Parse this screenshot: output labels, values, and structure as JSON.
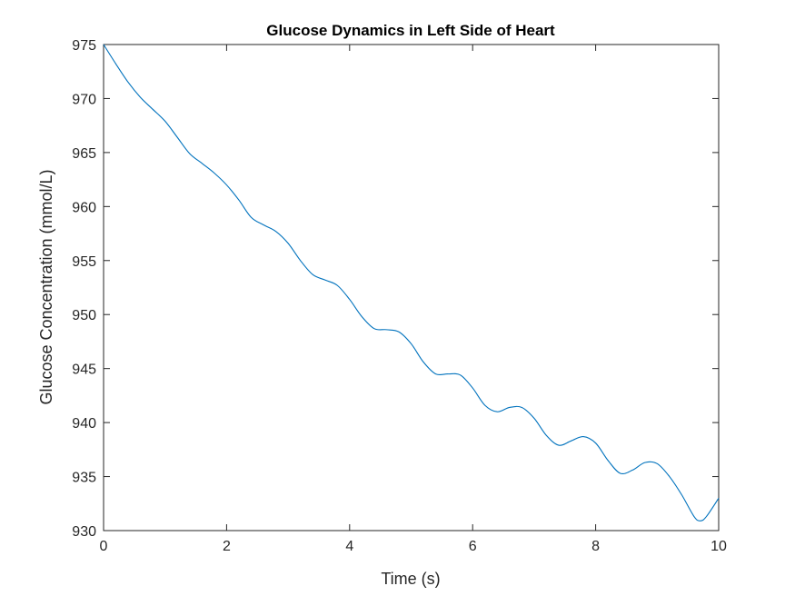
{
  "chart_data": {
    "type": "line",
    "title": "Glucose Dynamics in Left Side of Heart",
    "xlabel": "Time (s)",
    "ylabel": "Glucose Concentration (mmol/L)",
    "xlim": [
      0,
      10
    ],
    "ylim": [
      930,
      975
    ],
    "xticks": [
      0,
      2,
      4,
      6,
      8,
      10
    ],
    "yticks": [
      930,
      935,
      940,
      945,
      950,
      955,
      960,
      965,
      970,
      975
    ],
    "grid": false,
    "legend": "none",
    "series": [
      {
        "color": "#0072BD",
        "x": [
          0,
          0.2,
          0.4,
          0.6,
          0.8,
          1.0,
          1.2,
          1.4,
          1.6,
          1.8,
          2.0,
          2.2,
          2.4,
          2.6,
          2.8,
          3.0,
          3.2,
          3.4,
          3.6,
          3.8,
          4.0,
          4.2,
          4.4,
          4.6,
          4.8,
          5.0,
          5.2,
          5.4,
          5.6,
          5.8,
          6.0,
          6.2,
          6.4,
          6.6,
          6.8,
          7.0,
          7.2,
          7.4,
          7.6,
          7.8,
          8.0,
          8.2,
          8.4,
          8.6,
          8.8,
          9.0,
          9.2,
          9.4,
          9.6,
          9.7,
          9.8,
          10.0
        ],
        "y": [
          975.0,
          973.2,
          971.5,
          970.1,
          969.0,
          967.9,
          966.4,
          964.9,
          964.0,
          963.1,
          962.0,
          960.6,
          959.0,
          958.3,
          957.7,
          956.6,
          955.0,
          953.7,
          953.2,
          952.7,
          951.4,
          949.8,
          948.7,
          948.6,
          948.4,
          947.3,
          945.6,
          944.5,
          944.5,
          944.4,
          943.2,
          941.6,
          941.0,
          941.4,
          941.4,
          940.4,
          938.8,
          937.9,
          938.3,
          938.7,
          938.1,
          936.5,
          935.3,
          935.6,
          936.3,
          936.2,
          935.0,
          933.3,
          931.3,
          930.9,
          931.3,
          933.0
        ]
      }
    ]
  }
}
